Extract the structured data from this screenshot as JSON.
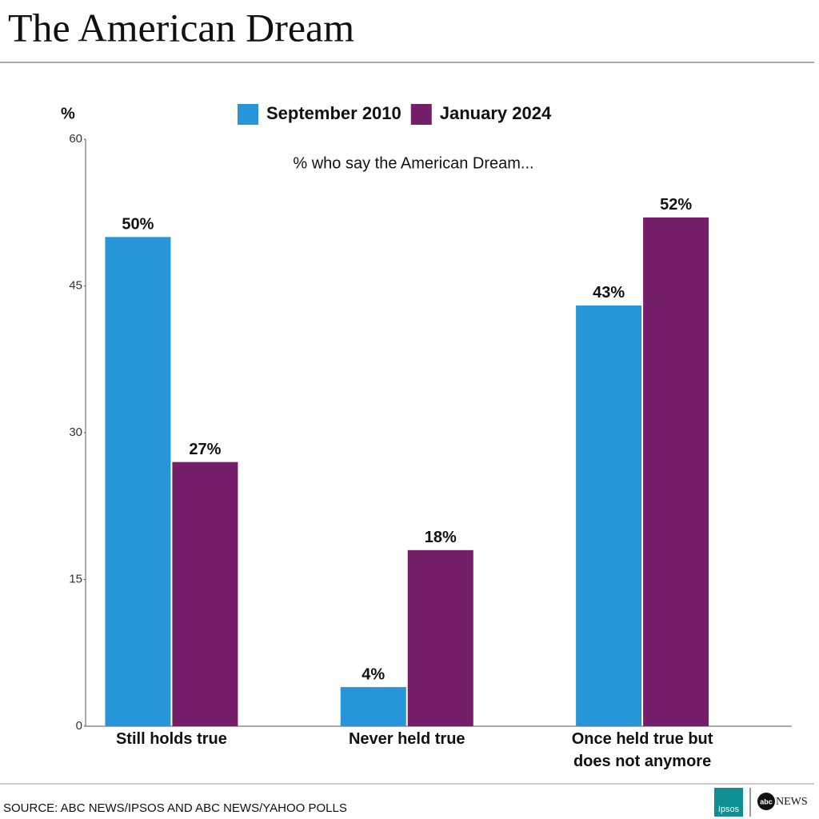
{
  "chart_data": {
    "type": "bar",
    "title": "The American Dream",
    "subtitle": "% who say the American Dream...",
    "y_label": "%",
    "categories": [
      "Still holds true",
      "Never held true",
      "Once held true but does not anymore"
    ],
    "series": [
      {
        "name": "September 2010",
        "color": "#2696d8",
        "values": [
          50,
          4,
          43
        ],
        "value_labels": [
          "50%",
          "4%",
          "43%"
        ]
      },
      {
        "name": "January 2024",
        "color": "#751f6b",
        "values": [
          27,
          18,
          52
        ],
        "value_labels": [
          "27%",
          "18%",
          "52%"
        ]
      }
    ],
    "ylim": [
      0,
      60
    ],
    "yticks": [
      0,
      15,
      30,
      45,
      60
    ],
    "grid": false,
    "legend_position": "top",
    "source": "SOURCE: ABC NEWS/IPSOS AND ABC NEWS/YAHOO POLLS",
    "logos": [
      "Ipsos",
      "abc",
      "NEWS"
    ]
  }
}
